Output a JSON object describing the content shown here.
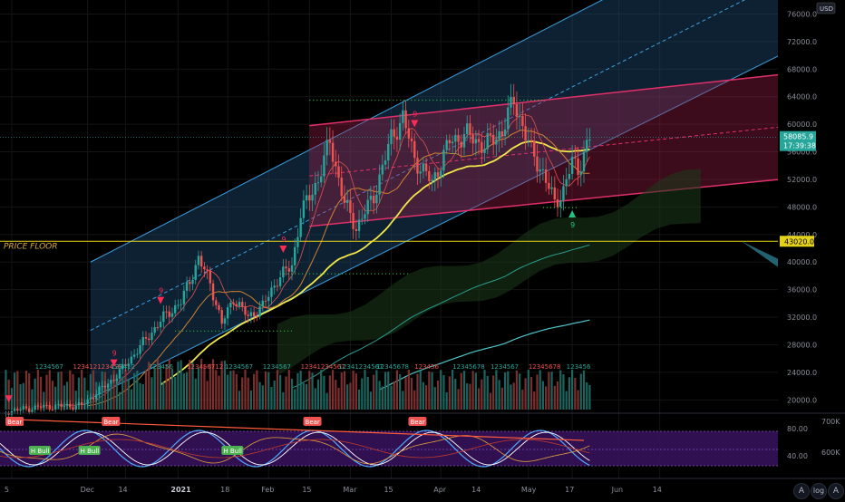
{
  "chart_data": {
    "type": "candlestick",
    "currency": "USD",
    "y_axis": {
      "ticks": [
        20000,
        24000,
        28000,
        32000,
        36000,
        40000,
        44000,
        48000,
        52000,
        56000,
        60000,
        64000,
        68000,
        72000,
        76000
      ],
      "labels": [
        "20000.0",
        "24000.0",
        "28000.0",
        "32000.0",
        "36000.0",
        "40000.0",
        "44000.0",
        "48000.0",
        "52000.0",
        "56000.0",
        "60000.0",
        "64000.0",
        "68000.0",
        "72000.0",
        "76000.0"
      ],
      "range": [
        18600,
        77900
      ]
    },
    "x_axis": {
      "labels": [
        "5",
        "Dec",
        "14",
        "2021",
        "18",
        "Feb",
        "15",
        "Mar",
        "15",
        "Apr",
        "14",
        "May",
        "17",
        "Jun",
        "14"
      ],
      "label_days": [
        4,
        30,
        43,
        61,
        78,
        92,
        106,
        120,
        134,
        151,
        164,
        181,
        196,
        212,
        226
      ]
    },
    "price_levels": {
      "last_price": "58085.9",
      "countdown": "17:39:38",
      "price_floor": "43020.0",
      "price_floor_label": "PRICE FLOOR"
    },
    "price_keypoints": [
      {
        "day": 2,
        "price": 18300
      },
      {
        "day": 14,
        "price": 19000
      },
      {
        "day": 28,
        "price": 19200
      },
      {
        "day": 40,
        "price": 23500
      },
      {
        "day": 50,
        "price": 28800
      },
      {
        "day": 56,
        "price": 32000
      },
      {
        "day": 62,
        "price": 34200
      },
      {
        "day": 68,
        "price": 40500
      },
      {
        "day": 72,
        "price": 37000
      },
      {
        "day": 76,
        "price": 31000
      },
      {
        "day": 80,
        "price": 34800
      },
      {
        "day": 85,
        "price": 32000
      },
      {
        "day": 90,
        "price": 33600
      },
      {
        "day": 95,
        "price": 37500
      },
      {
        "day": 100,
        "price": 39500
      },
      {
        "day": 103,
        "price": 47000
      },
      {
        "day": 109,
        "price": 52000
      },
      {
        "day": 113,
        "price": 57500
      },
      {
        "day": 118,
        "price": 48500
      },
      {
        "day": 122,
        "price": 45000
      },
      {
        "day": 128,
        "price": 49500
      },
      {
        "day": 134,
        "price": 58000
      },
      {
        "day": 138,
        "price": 61000
      },
      {
        "day": 142,
        "price": 55000
      },
      {
        "day": 148,
        "price": 51500
      },
      {
        "day": 154,
        "price": 57500
      },
      {
        "day": 160,
        "price": 58500
      },
      {
        "day": 166,
        "price": 56800
      },
      {
        "day": 172,
        "price": 59000
      },
      {
        "day": 176,
        "price": 63500
      },
      {
        "day": 178,
        "price": 61000
      },
      {
        "day": 182,
        "price": 56000
      },
      {
        "day": 186,
        "price": 53000
      },
      {
        "day": 190,
        "price": 48500
      },
      {
        "day": 193,
        "price": 50500
      },
      {
        "day": 196,
        "price": 54500
      },
      {
        "day": 198,
        "price": 53500
      },
      {
        "day": 202,
        "price": 58000
      }
    ],
    "sequential_count_labels": [
      "1234567",
      "123412123456",
      "123412",
      "123456",
      "123456712",
      "1234567",
      "1234567",
      "12341234567",
      "12341234567",
      "12345678",
      "123456",
      "12345678",
      "1234567",
      "12345678",
      "123456"
    ],
    "oscillator": {
      "axis_labels": [
        "80.00",
        "40.00"
      ],
      "volume_labels": [
        "700K",
        "600K"
      ],
      "signals": [
        {
          "label": "Bear",
          "day": 5
        },
        {
          "label": "H Bull",
          "day": 13
        },
        {
          "label": "H Bull",
          "day": 30
        },
        {
          "label": "Bear",
          "day": 38
        },
        {
          "label": "H Bull",
          "day": 79
        },
        {
          "label": "Bear",
          "day": 107
        },
        {
          "label": "Bear",
          "day": 143
        }
      ]
    },
    "markers": [
      {
        "type": "sell",
        "day": 3,
        "label": ""
      },
      {
        "type": "sell",
        "day": 39,
        "label": "9"
      },
      {
        "type": "sell",
        "day": 55,
        "label": "9"
      },
      {
        "type": "sell",
        "day": 97,
        "label": "9"
      },
      {
        "type": "sell",
        "day": 142,
        "label": "9"
      },
      {
        "type": "buy",
        "day": 196,
        "label": "9"
      }
    ]
  },
  "overlay_buttons": {
    "auto_label": "A",
    "log_label": "log",
    "auto_label_2": "A"
  },
  "colors": {
    "up": "#26a69a",
    "down": "#ef5350",
    "price_floor": "#e6d21a",
    "last_price_bg": "#26a69a",
    "sma": "#e8e15a",
    "bear_tag": "#ef5350",
    "bull_tag": "#4caf50"
  }
}
